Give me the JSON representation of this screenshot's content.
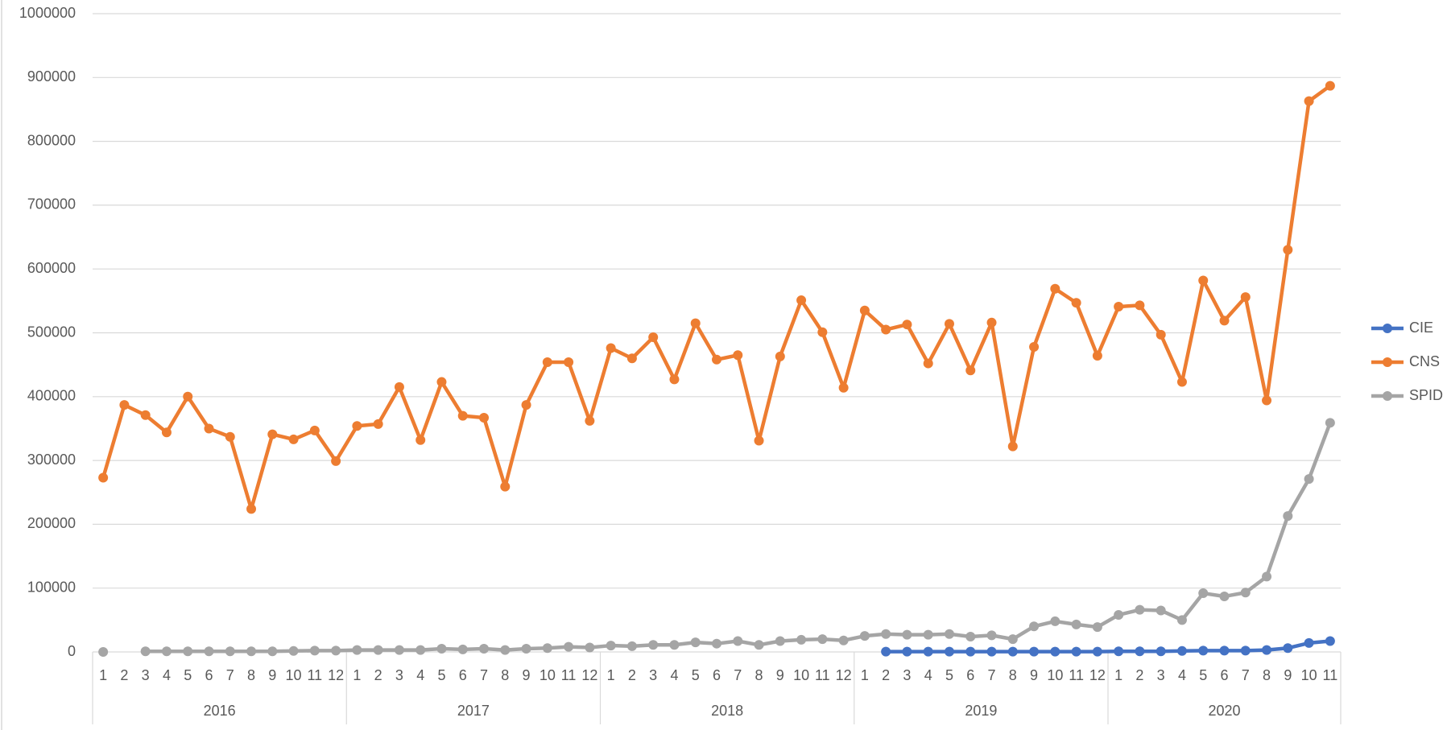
{
  "chart_data": {
    "type": "line",
    "categories": [
      "1",
      "2",
      "3",
      "4",
      "5",
      "6",
      "7",
      "8",
      "9",
      "10",
      "11",
      "12",
      "1",
      "2",
      "3",
      "4",
      "5",
      "6",
      "7",
      "8",
      "9",
      "10",
      "11",
      "12",
      "1",
      "2",
      "3",
      "4",
      "5",
      "6",
      "7",
      "8",
      "9",
      "10",
      "11",
      "12",
      "1",
      "2",
      "3",
      "4",
      "5",
      "6",
      "7",
      "8",
      "9",
      "10",
      "11",
      "12",
      "1",
      "2",
      "3",
      "4",
      "5",
      "6",
      "7",
      "8",
      "9",
      "10",
      "11"
    ],
    "x_groups": [
      "2016",
      "2017",
      "2018",
      "2019",
      "2020"
    ],
    "series": [
      {
        "name": "CIE",
        "color": "#4472c4",
        "values": [
          null,
          null,
          null,
          null,
          null,
          null,
          null,
          null,
          null,
          null,
          null,
          null,
          null,
          null,
          null,
          null,
          null,
          null,
          null,
          null,
          null,
          null,
          null,
          null,
          null,
          null,
          null,
          null,
          null,
          null,
          null,
          null,
          null,
          null,
          null,
          null,
          null,
          500,
          500,
          500,
          500,
          500,
          500,
          500,
          500,
          500,
          500,
          500,
          1000,
          1000,
          1000,
          1500,
          2000,
          2000,
          2000,
          3000,
          6000,
          14000,
          17000
        ]
      },
      {
        "name": "CNS",
        "color": "#ed7d31",
        "values": [
          273000,
          387000,
          371000,
          344000,
          400000,
          350000,
          337000,
          224000,
          341000,
          333000,
          347000,
          299000,
          354000,
          357000,
          415000,
          332000,
          423000,
          370000,
          367000,
          259000,
          387000,
          454000,
          454000,
          362000,
          476000,
          460000,
          493000,
          427000,
          515000,
          458000,
          465000,
          331000,
          463000,
          551000,
          501000,
          414000,
          535000,
          505000,
          513000,
          452000,
          514000,
          441000,
          516000,
          322000,
          478000,
          569000,
          547000,
          464000,
          541000,
          543000,
          497000,
          423000,
          582000,
          519000,
          556000,
          394000,
          630000,
          863000,
          887000
        ]
      },
      {
        "name": "SPID",
        "color": "#a5a5a5",
        "values": [
          0,
          null,
          1000,
          1000,
          1000,
          1000,
          1000,
          1000,
          1000,
          1500,
          2000,
          2000,
          3000,
          3000,
          3000,
          3000,
          5000,
          4000,
          5000,
          3000,
          5000,
          6000,
          8000,
          7000,
          10000,
          9000,
          11000,
          11000,
          15000,
          13000,
          17000,
          11000,
          17000,
          19000,
          20000,
          18000,
          25000,
          28000,
          27000,
          27000,
          28000,
          24000,
          26000,
          20000,
          40000,
          48000,
          43000,
          39000,
          58000,
          66000,
          65000,
          50000,
          92000,
          87000,
          93000,
          118000,
          213000,
          271000,
          359000
        ]
      }
    ],
    "ylim": [
      0,
      1000000
    ],
    "yticks": [
      0,
      100000,
      200000,
      300000,
      400000,
      500000,
      600000,
      700000,
      800000,
      900000,
      1000000
    ],
    "grid": true,
    "legend": "right"
  }
}
